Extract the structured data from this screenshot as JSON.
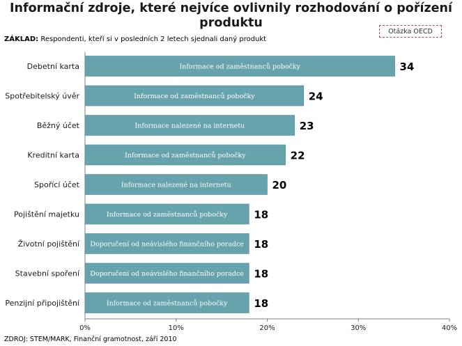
{
  "title": "Informační zdroje, které nejvíce ovlivnily rozhodování o pořízení produktu",
  "base": {
    "label": "ZÁKLAD:",
    "text": "Respondenti, kteří si v posledních 2 letech sjednali daný produkt"
  },
  "tag": "Otázka OECD",
  "source": "ZDROJ: STEM/MARK, Finanční gramotnost, září 2010",
  "colors": {
    "bar": "#66a3ad",
    "bar_stroke": "#4f8a94",
    "axis": "#808080"
  },
  "chart_data": {
    "type": "bar",
    "orientation": "horizontal",
    "categories": [
      "Debetní karta",
      "Spotřebitelský úvěr",
      "Běžný účet",
      "Kreditní karta",
      "Spořící účet",
      "Pojištění majetku",
      "Životní pojištění",
      "Stavební spoření",
      "Penzijní připojištění"
    ],
    "values": [
      34,
      24,
      23,
      22,
      20,
      18,
      18,
      18,
      18
    ],
    "value_labels": [
      "34",
      "24",
      "23",
      "22",
      "20",
      "18",
      "18",
      "18",
      "18"
    ],
    "bar_labels": [
      "Informace od zaměstnanců pobočky",
      "Informace od zaměstnanců pobočky",
      "Informace nalezené na internetu",
      "Informace od zaměstnanců pobočky",
      "Informace nalezené na internetu",
      "Informace od zaměstnanců pobočky",
      "Doporučení od neávislého finančního poradce",
      "Doporučení od neávislého finančního poradce",
      "Informace od zaměstnanců pobočky"
    ],
    "xlim": [
      0,
      40
    ],
    "xticks": [
      0,
      10,
      20,
      30,
      40
    ],
    "xtick_labels": [
      "0%",
      "10%",
      "20%",
      "30%",
      "40%"
    ],
    "grid": false,
    "legend": "none"
  }
}
